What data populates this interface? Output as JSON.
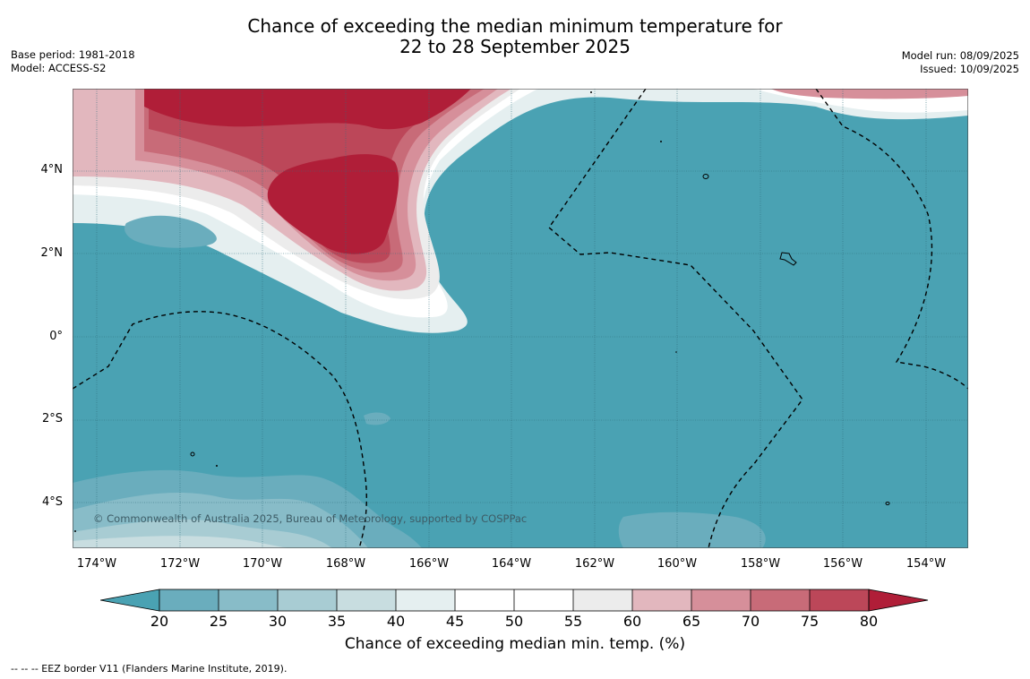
{
  "title": {
    "line1": "Chance of exceeding the median minimum temperature for",
    "line2": "22 to 28 September 2025"
  },
  "meta_left": {
    "base_period": "Base period: 1981-2018",
    "model": "Model: ACCESS-S2"
  },
  "meta_right": {
    "model_run": "Model run: 08/09/2025",
    "issued": "Issued: 10/09/2025"
  },
  "map": {
    "latitude_labels": [
      "4°N",
      "2°N",
      "0°",
      "2°S",
      "4°S"
    ],
    "longitude_labels": [
      "174°W",
      "172°W",
      "170°W",
      "168°W",
      "166°W",
      "164°W",
      "162°W",
      "160°W",
      "158°W",
      "156°W",
      "154°W"
    ],
    "copyright": "© Commonwealth of Australia 2025, Bureau of Meteorology, supported by COSPPac",
    "colors": {
      "below_20": "#4aa2b3",
      "band_20_25": "#6aadbd",
      "band_25_30": "#88bcc8",
      "band_30_35": "#a8ccd3",
      "band_35_40": "#c8dde0",
      "band_40_45": "#e5eff0",
      "band_45_55": "#ffffff",
      "band_55_60": "#ececec",
      "band_60_65": "#e2b7be",
      "band_65_70": "#d68f9a",
      "band_70_75": "#c86b78",
      "band_75_80": "#bc4759",
      "above_80": "#b01e38"
    }
  },
  "colorbar": {
    "ticks": [
      "20",
      "25",
      "30",
      "35",
      "40",
      "45",
      "50",
      "55",
      "60",
      "65",
      "70",
      "75",
      "80"
    ],
    "label": "Chance of exceeding median min. temp. (%)"
  },
  "footnote": "--  --  -- EEZ border V11 (Flanders Marine Institute, 2019)."
}
